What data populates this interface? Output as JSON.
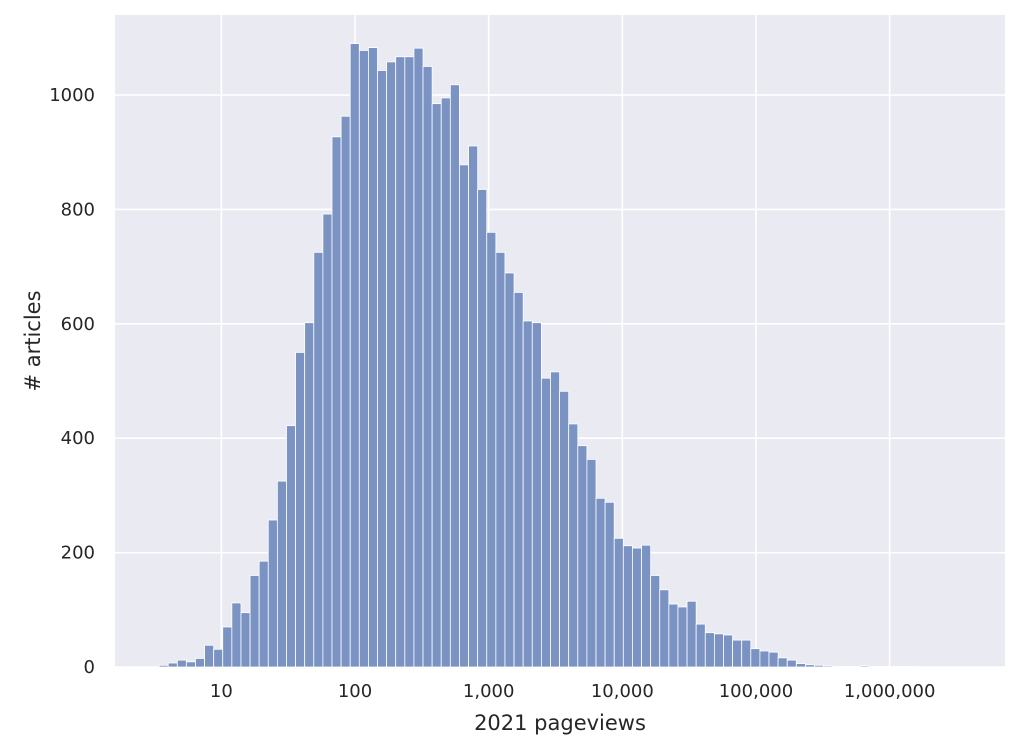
{
  "chart_data": {
    "type": "bar",
    "subtype": "histogram",
    "title": "",
    "xlabel": "2021 pageviews",
    "ylabel": "# articles",
    "x_scale": "log",
    "xlim": [
      1.6,
      7300000
    ],
    "ylim": [
      0,
      1140
    ],
    "grid": true,
    "legend": "none",
    "x_ticks": [
      {
        "value": 10,
        "label": "10"
      },
      {
        "value": 100,
        "label": "100"
      },
      {
        "value": 1000,
        "label": "1,000"
      },
      {
        "value": 10000,
        "label": "10,000"
      },
      {
        "value": 100000,
        "label": "100,000"
      },
      {
        "value": 1000000,
        "label": "1,000,000"
      }
    ],
    "y_ticks": [
      {
        "value": 0,
        "label": "0"
      },
      {
        "value": 200,
        "label": "200"
      },
      {
        "value": 400,
        "label": "400"
      },
      {
        "value": 600,
        "label": "600"
      },
      {
        "value": 800,
        "label": "800"
      },
      {
        "value": 1000,
        "label": "1000"
      }
    ],
    "bin_edges": [
      3.42,
      4.0,
      4.68,
      5.47,
      6.4,
      7.49,
      8.76,
      10.24,
      11.98,
      14.02,
      16.4,
      19.18,
      22.44,
      26.25,
      30.71,
      35.92,
      42.02,
      49.15,
      57.5,
      67.27,
      78.69,
      92.05,
      107.7,
      126.0,
      147.3,
      172.4,
      201.6,
      235.9,
      275.9,
      322.8,
      377.6,
      441.7,
      516.7,
      604.5,
      707.1,
      827.2,
      967.7,
      1132,
      1324,
      1549,
      1812,
      2120,
      2480,
      2901,
      3394,
      3970,
      4645,
      5433,
      6356,
      7436,
      8698,
      10176,
      11904,
      13926,
      16291,
      19058,
      22295,
      26082,
      30511,
      35694,
      41756,
      48848,
      57145,
      66850,
      78204,
      91487,
      107025,
      125203,
      146468,
      171345,
      200447,
      234491,
      274318,
      320909,
      375414,
      439175,
      513765,
      601024,
      703103,
      822519,
      962219,
      1125645,
      1316829,
      1540484,
      1802126,
      2108206,
      2466269,
      2885147,
      3375169,
      3948417
    ],
    "values": [
      3,
      7,
      12,
      9,
      15,
      38,
      31,
      70,
      112,
      95,
      160,
      185,
      257,
      325,
      422,
      550,
      602,
      725,
      792,
      927,
      963,
      1090,
      1078,
      1083,
      1043,
      1058,
      1067,
      1067,
      1082,
      1050,
      985,
      995,
      1018,
      878,
      911,
      835,
      760,
      725,
      689,
      655,
      605,
      602,
      505,
      516,
      482,
      425,
      387,
      363,
      295,
      288,
      225,
      212,
      208,
      213,
      160,
      135,
      110,
      105,
      115,
      75,
      60,
      58,
      56,
      47,
      47,
      32,
      28,
      26,
      16,
      12,
      6,
      4,
      3,
      2,
      1,
      1,
      1,
      2,
      1,
      1,
      1,
      1,
      1,
      0,
      0,
      0,
      0,
      0,
      0
    ],
    "colors": {
      "bar_fill": "#7a93c2",
      "bar_stroke": "#ffffff",
      "plot_background": "#eaeaf2",
      "grid": "#ffffff",
      "text": "#262626"
    }
  }
}
